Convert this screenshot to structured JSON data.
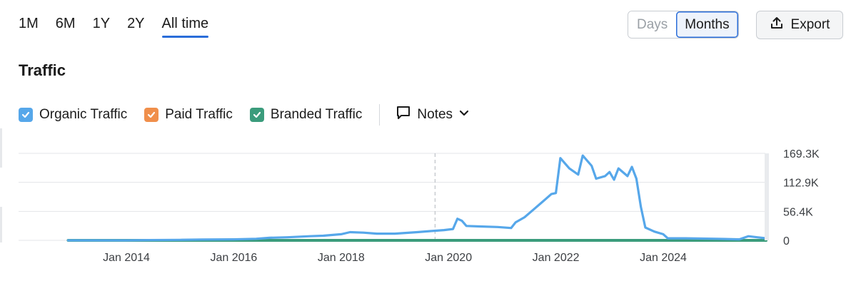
{
  "ranges": [
    {
      "label": "1M",
      "active": false
    },
    {
      "label": "6M",
      "active": false
    },
    {
      "label": "1Y",
      "active": false
    },
    {
      "label": "2Y",
      "active": false
    },
    {
      "label": "All time",
      "active": true
    }
  ],
  "granularity": {
    "days": "Days",
    "months": "Months",
    "selected": "Months"
  },
  "export_label": "Export",
  "title": "Traffic",
  "legend": {
    "organic": {
      "label": "Organic Traffic",
      "color": "#56a7ea",
      "checked": true
    },
    "paid": {
      "label": "Paid Traffic",
      "color": "#f08f4b",
      "checked": true
    },
    "branded": {
      "label": "Branded Traffic",
      "color": "#3b9c7c",
      "checked": true
    },
    "notes": "Notes"
  },
  "chart_data": {
    "type": "line",
    "x_ticks": [
      "Jan 2014",
      "Jan 2016",
      "Jan 2018",
      "Jan 2020",
      "Jan 2022",
      "Jan 2024"
    ],
    "y_ticks": [
      "169.3K",
      "112.9K",
      "56.4K",
      "0"
    ],
    "ylim": [
      0,
      169300
    ],
    "grid": true,
    "series": [
      {
        "name": "Organic Traffic",
        "color": "#56a7ea",
        "points": [
          [
            "2012-12",
            0
          ],
          [
            "2013-06",
            0
          ],
          [
            "2014-01",
            0
          ],
          [
            "2014-06",
            500
          ],
          [
            "2015-01",
            1000
          ],
          [
            "2015-06",
            1500
          ],
          [
            "2016-01",
            2000
          ],
          [
            "2016-06",
            3000
          ],
          [
            "2016-09",
            5000
          ],
          [
            "2017-01",
            6000
          ],
          [
            "2017-06",
            8000
          ],
          [
            "2017-09",
            9000
          ],
          [
            "2018-01",
            12000
          ],
          [
            "2018-03",
            16000
          ],
          [
            "2018-06",
            15000
          ],
          [
            "2018-09",
            13000
          ],
          [
            "2019-01",
            13000
          ],
          [
            "2019-06",
            16000
          ],
          [
            "2019-09",
            18000
          ],
          [
            "2019-12",
            20000
          ],
          [
            "2020-02",
            22000
          ],
          [
            "2020-03",
            42000
          ],
          [
            "2020-04",
            38000
          ],
          [
            "2020-05",
            28000
          ],
          [
            "2020-08",
            27000
          ],
          [
            "2020-12",
            26000
          ],
          [
            "2021-03",
            24000
          ],
          [
            "2021-04",
            35000
          ],
          [
            "2021-06",
            45000
          ],
          [
            "2021-08",
            60000
          ],
          [
            "2021-10",
            75000
          ],
          [
            "2021-12",
            90000
          ],
          [
            "2022-01",
            92000
          ],
          [
            "2022-02",
            160000
          ],
          [
            "2022-04",
            140000
          ],
          [
            "2022-06",
            128000
          ],
          [
            "2022-07",
            165000
          ],
          [
            "2022-09",
            145000
          ],
          [
            "2022-10",
            120000
          ],
          [
            "2022-12",
            125000
          ],
          [
            "2023-01",
            133000
          ],
          [
            "2023-02",
            118000
          ],
          [
            "2023-03",
            140000
          ],
          [
            "2023-05",
            125000
          ],
          [
            "2023-06",
            143000
          ],
          [
            "2023-07",
            120000
          ],
          [
            "2023-08",
            65000
          ],
          [
            "2023-09",
            25000
          ],
          [
            "2023-11",
            17000
          ],
          [
            "2024-01",
            12000
          ],
          [
            "2024-02",
            4000
          ],
          [
            "2024-06",
            4000
          ],
          [
            "2025-01",
            3000
          ],
          [
            "2025-06",
            2000
          ],
          [
            "2025-08",
            8000
          ],
          [
            "2025-10",
            6000
          ],
          [
            "2025-12",
            4000
          ]
        ]
      },
      {
        "name": "Branded Traffic",
        "color": "#3b9c7c",
        "points": [
          [
            "2012-12",
            0
          ],
          [
            "2025-12",
            0
          ]
        ]
      }
    ],
    "annotation_line": "2019-10"
  }
}
